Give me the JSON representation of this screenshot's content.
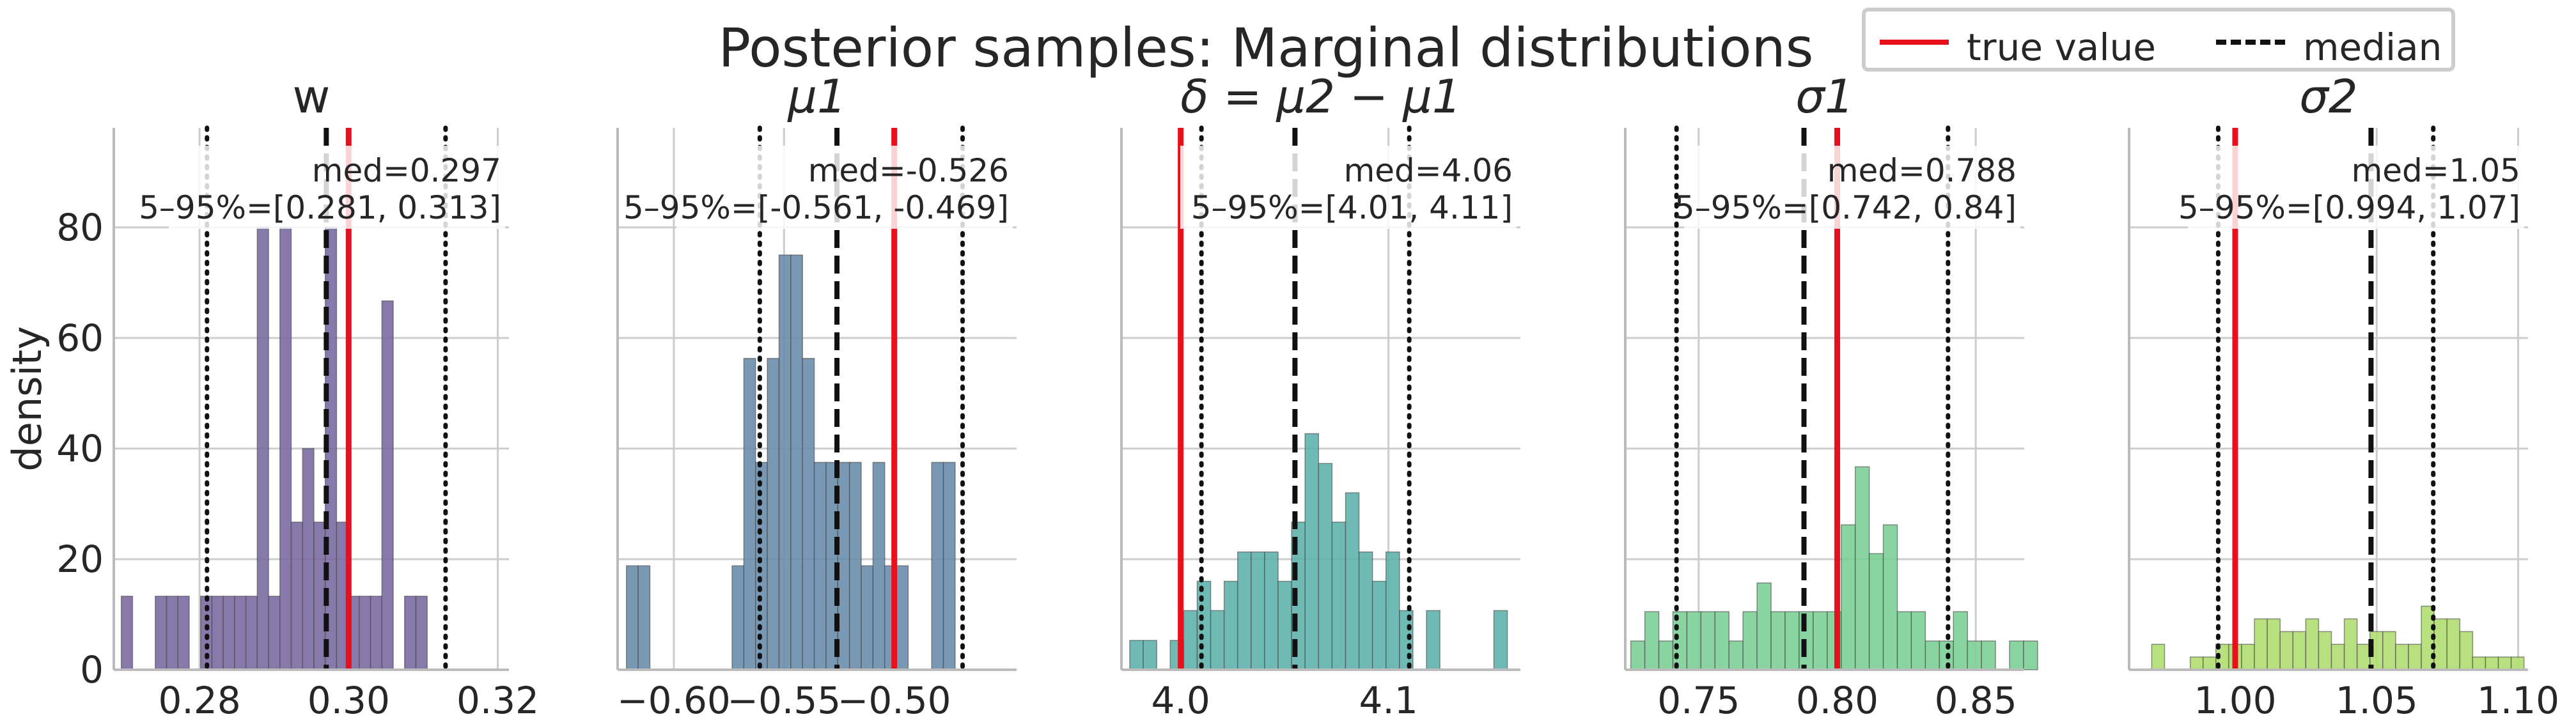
{
  "title": "Posterior samples: Marginal distributions",
  "legend": {
    "placement": "top-right",
    "items": [
      {
        "label": "true value",
        "color": "#e8101a",
        "style": "solid"
      },
      {
        "label": "median",
        "color": "#111111",
        "style": "dashed"
      }
    ]
  },
  "chart_data": [
    {
      "type": "histogram",
      "title": "w",
      "ylabel": "density",
      "xlim": [
        0.2685,
        0.3215
      ],
      "ylim": [
        0,
        98
      ],
      "xticks": [
        0.28,
        0.3,
        0.32
      ],
      "xtick_labels": [
        "0.28",
        "0.30",
        "0.32"
      ],
      "yticks": [
        0,
        20,
        40,
        60,
        80
      ],
      "ytick_labels": [
        "0",
        "20",
        "40",
        "60",
        "80"
      ],
      "show_ytick_labels": true,
      "color": "#7b6aa2",
      "bins": {
        "start": 0.2695,
        "width": 0.00152,
        "counts": [
          13.3,
          0,
          0,
          13.3,
          13.3,
          13.3,
          0,
          13.3,
          13.3,
          13.3,
          13.3,
          13.3,
          80,
          13.3,
          80,
          26.7,
          40,
          26.7,
          80,
          26.7,
          13.3,
          13.3,
          13.3,
          66.7,
          0,
          13.3,
          13.3
        ]
      },
      "true_value": 0.3,
      "median": 0.297,
      "interval": [
        0.281,
        0.313
      ],
      "annotation": {
        "med": "med=0.297",
        "interval": "5–95%=[0.281, 0.313]"
      }
    },
    {
      "type": "histogram",
      "title": "μ1",
      "ylabel": "",
      "xlim": [
        -0.6255,
        -0.4445
      ],
      "ylim": [
        0,
        98
      ],
      "xticks": [
        -0.6,
        -0.55,
        -0.5
      ],
      "xtick_labels": [
        "−0.60",
        "−0.55",
        "−0.50"
      ],
      "yticks": [
        0,
        20,
        40,
        60,
        80
      ],
      "ytick_labels": [
        "0",
        "20",
        "40",
        "60",
        "80"
      ],
      "show_ytick_labels": false,
      "color": "#6a8dac",
      "bins": {
        "start": -0.6215,
        "width": 0.005326,
        "counts": [
          18.8,
          18.8,
          0,
          0,
          0,
          0,
          0,
          0,
          0,
          18.8,
          56.3,
          37.5,
          56.3,
          75,
          75,
          56.3,
          37.5,
          37.5,
          37.5,
          37.5,
          18.8,
          37.5,
          18.8,
          18.8,
          0,
          0,
          37.5,
          37.5
        ]
      },
      "true_value": -0.5,
      "median": -0.526,
      "interval": [
        -0.561,
        -0.469
      ],
      "annotation": {
        "med": "med=-0.526",
        "interval": "5–95%=[-0.561, -0.469]"
      }
    },
    {
      "type": "histogram",
      "title": "δ = μ2 − μ1",
      "ylabel": "",
      "xlim": [
        3.9715,
        4.1635
      ],
      "ylim": [
        0,
        98
      ],
      "xticks": [
        4.0,
        4.1
      ],
      "xtick_labels": [
        "4.0",
        "4.1"
      ],
      "yticks": [
        0,
        20,
        40,
        60,
        80
      ],
      "ytick_labels": [
        "0",
        "20",
        "40",
        "60",
        "80"
      ],
      "show_ytick_labels": false,
      "color": "#5fb3ad",
      "bins": {
        "start": 3.9755,
        "width": 0.00649,
        "counts": [
          5.3,
          5.3,
          0,
          5.3,
          10.7,
          16,
          10.7,
          16,
          21.3,
          21.3,
          21.3,
          16,
          26.7,
          42.7,
          37.3,
          26.7,
          32,
          21.3,
          16,
          21.3,
          10.7,
          0,
          10.7,
          0,
          0,
          0,
          0,
          10.7
        ]
      },
      "true_value": 4.0,
      "median": 4.055,
      "interval": [
        4.01,
        4.11
      ],
      "annotation": {
        "med": "med=4.06",
        "interval": "5–95%=[4.01, 4.11]"
      }
    },
    {
      "type": "histogram",
      "title": "σ1",
      "ylabel": "",
      "xlim": [
        0.7235,
        0.8675
      ],
      "ylim": [
        0,
        98
      ],
      "xticks": [
        0.75,
        0.8,
        0.85
      ],
      "xtick_labels": [
        "0.75",
        "0.80",
        "0.85"
      ],
      "yticks": [
        0,
        20,
        40,
        60,
        80
      ],
      "ytick_labels": [
        "0",
        "20",
        "40",
        "60",
        "80"
      ],
      "show_ytick_labels": false,
      "color": "#7ccf96",
      "bins": {
        "start": 0.7255,
        "width": 0.005063,
        "counts": [
          5.2,
          10.5,
          5.2,
          10.5,
          10.5,
          10.5,
          10.5,
          5.2,
          10.5,
          15.7,
          10.5,
          10.5,
          10.5,
          10.5,
          10.5,
          26.2,
          36.7,
          21,
          26.2,
          10.5,
          10.5,
          5.2,
          5.2,
          10.5,
          5.2,
          5.2,
          0,
          5.2,
          5.2
        ]
      },
      "true_value": 0.8,
      "median": 0.788,
      "interval": [
        0.742,
        0.84
      ],
      "annotation": {
        "med": "med=0.788",
        "interval": "5–95%=[0.742, 0.84]"
      }
    },
    {
      "type": "histogram",
      "title": "σ2",
      "ylabel": "",
      "xlim": [
        0.9625,
        1.1035
      ],
      "ylim": [
        0,
        98
      ],
      "xticks": [
        1.0,
        1.05,
        1.1
      ],
      "xtick_labels": [
        "1.00",
        "1.05",
        "1.10"
      ],
      "yticks": [
        0,
        20,
        40,
        60,
        80
      ],
      "ytick_labels": [
        "0",
        "20",
        "40",
        "60",
        "80"
      ],
      "show_ytick_labels": false,
      "color": "#b1dd71",
      "bins": {
        "start": 0.9705,
        "width": 0.004537,
        "counts": [
          4.6,
          0,
          0,
          2.3,
          2.3,
          4.6,
          4.6,
          4.6,
          9.2,
          9.2,
          6.9,
          6.9,
          9.2,
          6.9,
          4.6,
          9.2,
          4.6,
          6.9,
          6.9,
          4.6,
          4.6,
          11.5,
          9.2,
          9.2,
          6.9,
          2.3,
          2.3,
          2.3,
          2.3
        ]
      },
      "true_value": 1.0,
      "median": 1.048,
      "interval": [
        0.994,
        1.07
      ],
      "annotation": {
        "med": "med=1.05",
        "interval": "5–95%=[0.994, 1.07]"
      }
    }
  ]
}
